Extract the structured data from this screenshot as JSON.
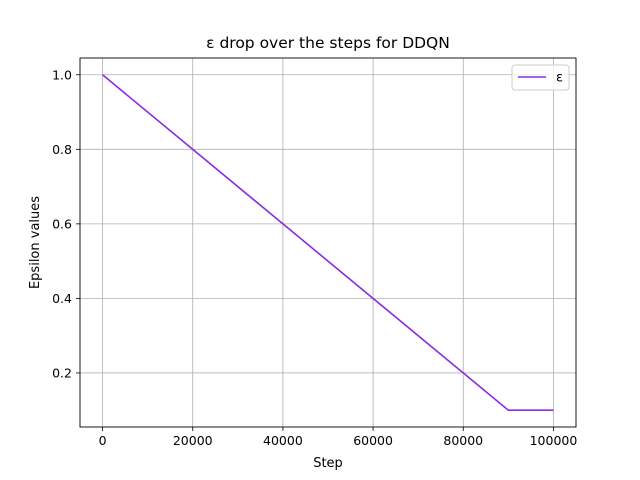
{
  "chart_data": {
    "type": "line",
    "title": "ε drop over the steps for DDQN",
    "xlabel": "Step",
    "ylabel": "Epsilon values",
    "xlim": [
      -5000,
      105000
    ],
    "ylim": [
      0.055,
      1.045
    ],
    "xticks": [
      0,
      20000,
      40000,
      60000,
      80000,
      100000
    ],
    "xtick_labels": [
      "0",
      "20000",
      "40000",
      "60000",
      "80000",
      "100000"
    ],
    "yticks": [
      0.2,
      0.4,
      0.6,
      0.8,
      1.0
    ],
    "ytick_labels": [
      "0.2",
      "0.4",
      "0.6",
      "0.8",
      "1.0"
    ],
    "grid": true,
    "legend_position": "top-right",
    "series": [
      {
        "name": "ε",
        "color": "#8a2be2",
        "x": [
          0,
          90000,
          100000
        ],
        "y": [
          1.0,
          0.1,
          0.1
        ]
      }
    ]
  }
}
